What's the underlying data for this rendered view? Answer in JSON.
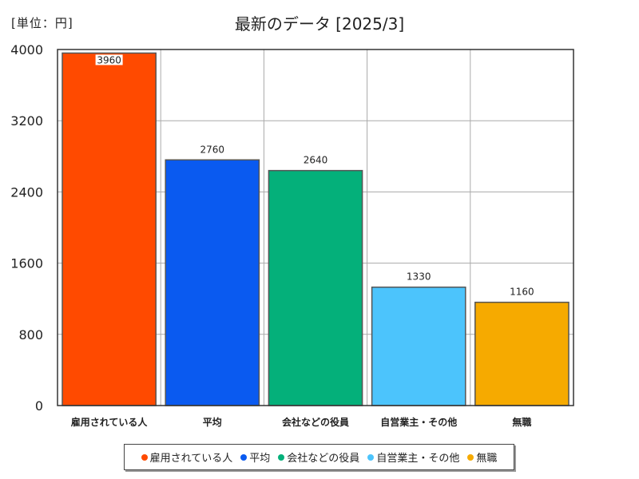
{
  "chart_data": {
    "type": "bar",
    "title": "最新のデータ [2025/3]",
    "unit_label": "[単位：円]",
    "categories": [
      "雇用されている人",
      "平均",
      "会社などの役員",
      "自営業主・その他",
      "無職"
    ],
    "values": [
      3960,
      2760,
      2640,
      1330,
      1160
    ],
    "colors": [
      "#ff4a00",
      "#0a5af0",
      "#04b07a",
      "#4cc4fc",
      "#f6aa00"
    ],
    "ylim": [
      0,
      4000
    ],
    "yticks": [
      0,
      800,
      1600,
      2400,
      3200,
      4000
    ],
    "ytick_labels": [
      "0",
      "800",
      "1600",
      "2400",
      "3200",
      "4000"
    ],
    "data_labels": [
      "3960",
      "2760",
      "2640",
      "1330",
      "1160"
    ],
    "grid": true,
    "legend_position": "bottom"
  },
  "legend": {
    "items": [
      {
        "label": "雇用されている人",
        "color": "#ff4a00"
      },
      {
        "label": "平均",
        "color": "#0a5af0"
      },
      {
        "label": "会社などの役員",
        "color": "#04b07a"
      },
      {
        "label": "自営業主・その他",
        "color": "#4cc4fc"
      },
      {
        "label": "無職",
        "color": "#f6aa00"
      }
    ]
  }
}
